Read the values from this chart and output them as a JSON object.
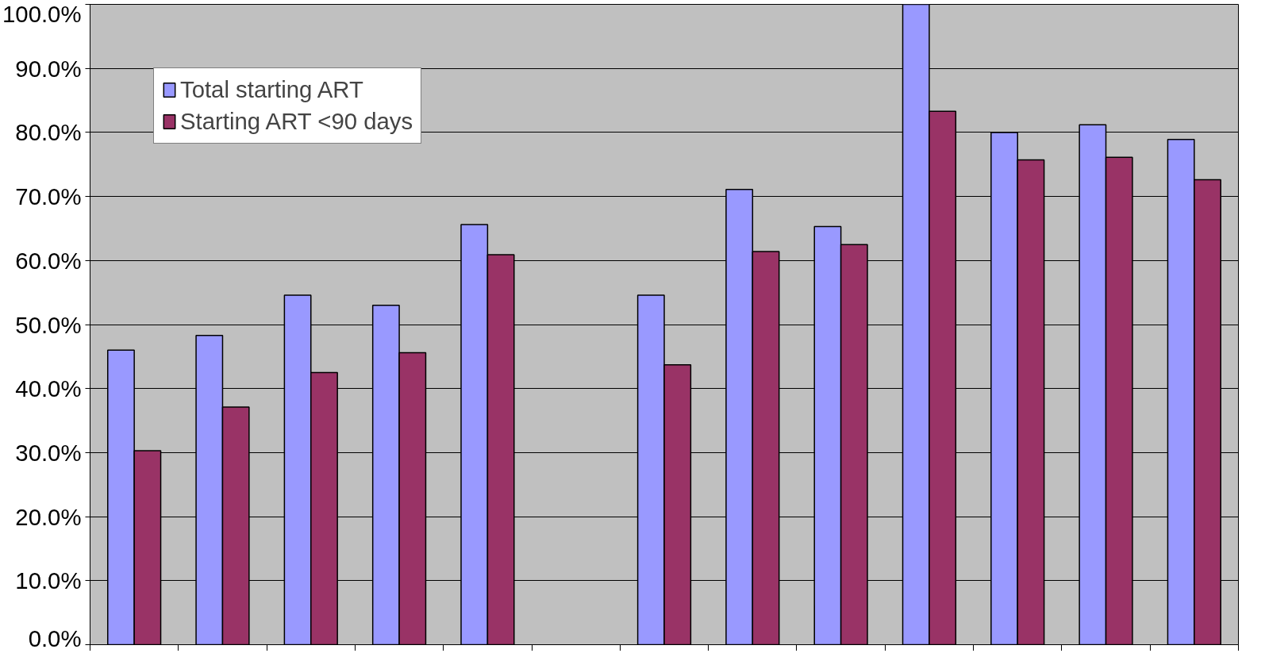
{
  "chart_data": {
    "type": "bar",
    "categories": [
      null,
      null,
      null,
      null,
      null,
      null,
      null,
      null,
      null,
      null,
      null,
      null,
      null
    ],
    "series": [
      {
        "name": "Total starting ART",
        "color": "#9999ff",
        "values": [
          46.0,
          48.3,
          54.6,
          53.0,
          65.6,
          null,
          54.6,
          71.1,
          65.3,
          100,
          80.0,
          81.2,
          78.9
        ]
      },
      {
        "name": "Starting ART <90 days",
        "color": "#993366",
        "values": [
          30.3,
          37.1,
          42.5,
          45.6,
          60.9,
          null,
          43.7,
          61.4,
          62.5,
          83.3,
          75.7,
          76.1,
          72.6
        ]
      }
    ],
    "ylim": [
      0,
      100
    ],
    "yticks": [
      {
        "value": 0,
        "label": "0.0%"
      },
      {
        "value": 10,
        "label": "10.0%"
      },
      {
        "value": 20,
        "label": "20.0%"
      },
      {
        "value": 30,
        "label": "30.0%"
      },
      {
        "value": 40,
        "label": "40.0%"
      },
      {
        "value": 50,
        "label": "50.0%"
      },
      {
        "value": 60,
        "label": "60.0%"
      },
      {
        "value": 70,
        "label": "70.0%"
      },
      {
        "value": 80,
        "label": "80.0%"
      },
      {
        "value": 90,
        "label": "90.0%"
      },
      {
        "value": 100,
        "label": "100.0%"
      }
    ],
    "grid": "y",
    "legend": "top left",
    "tick_labels": "y"
  }
}
